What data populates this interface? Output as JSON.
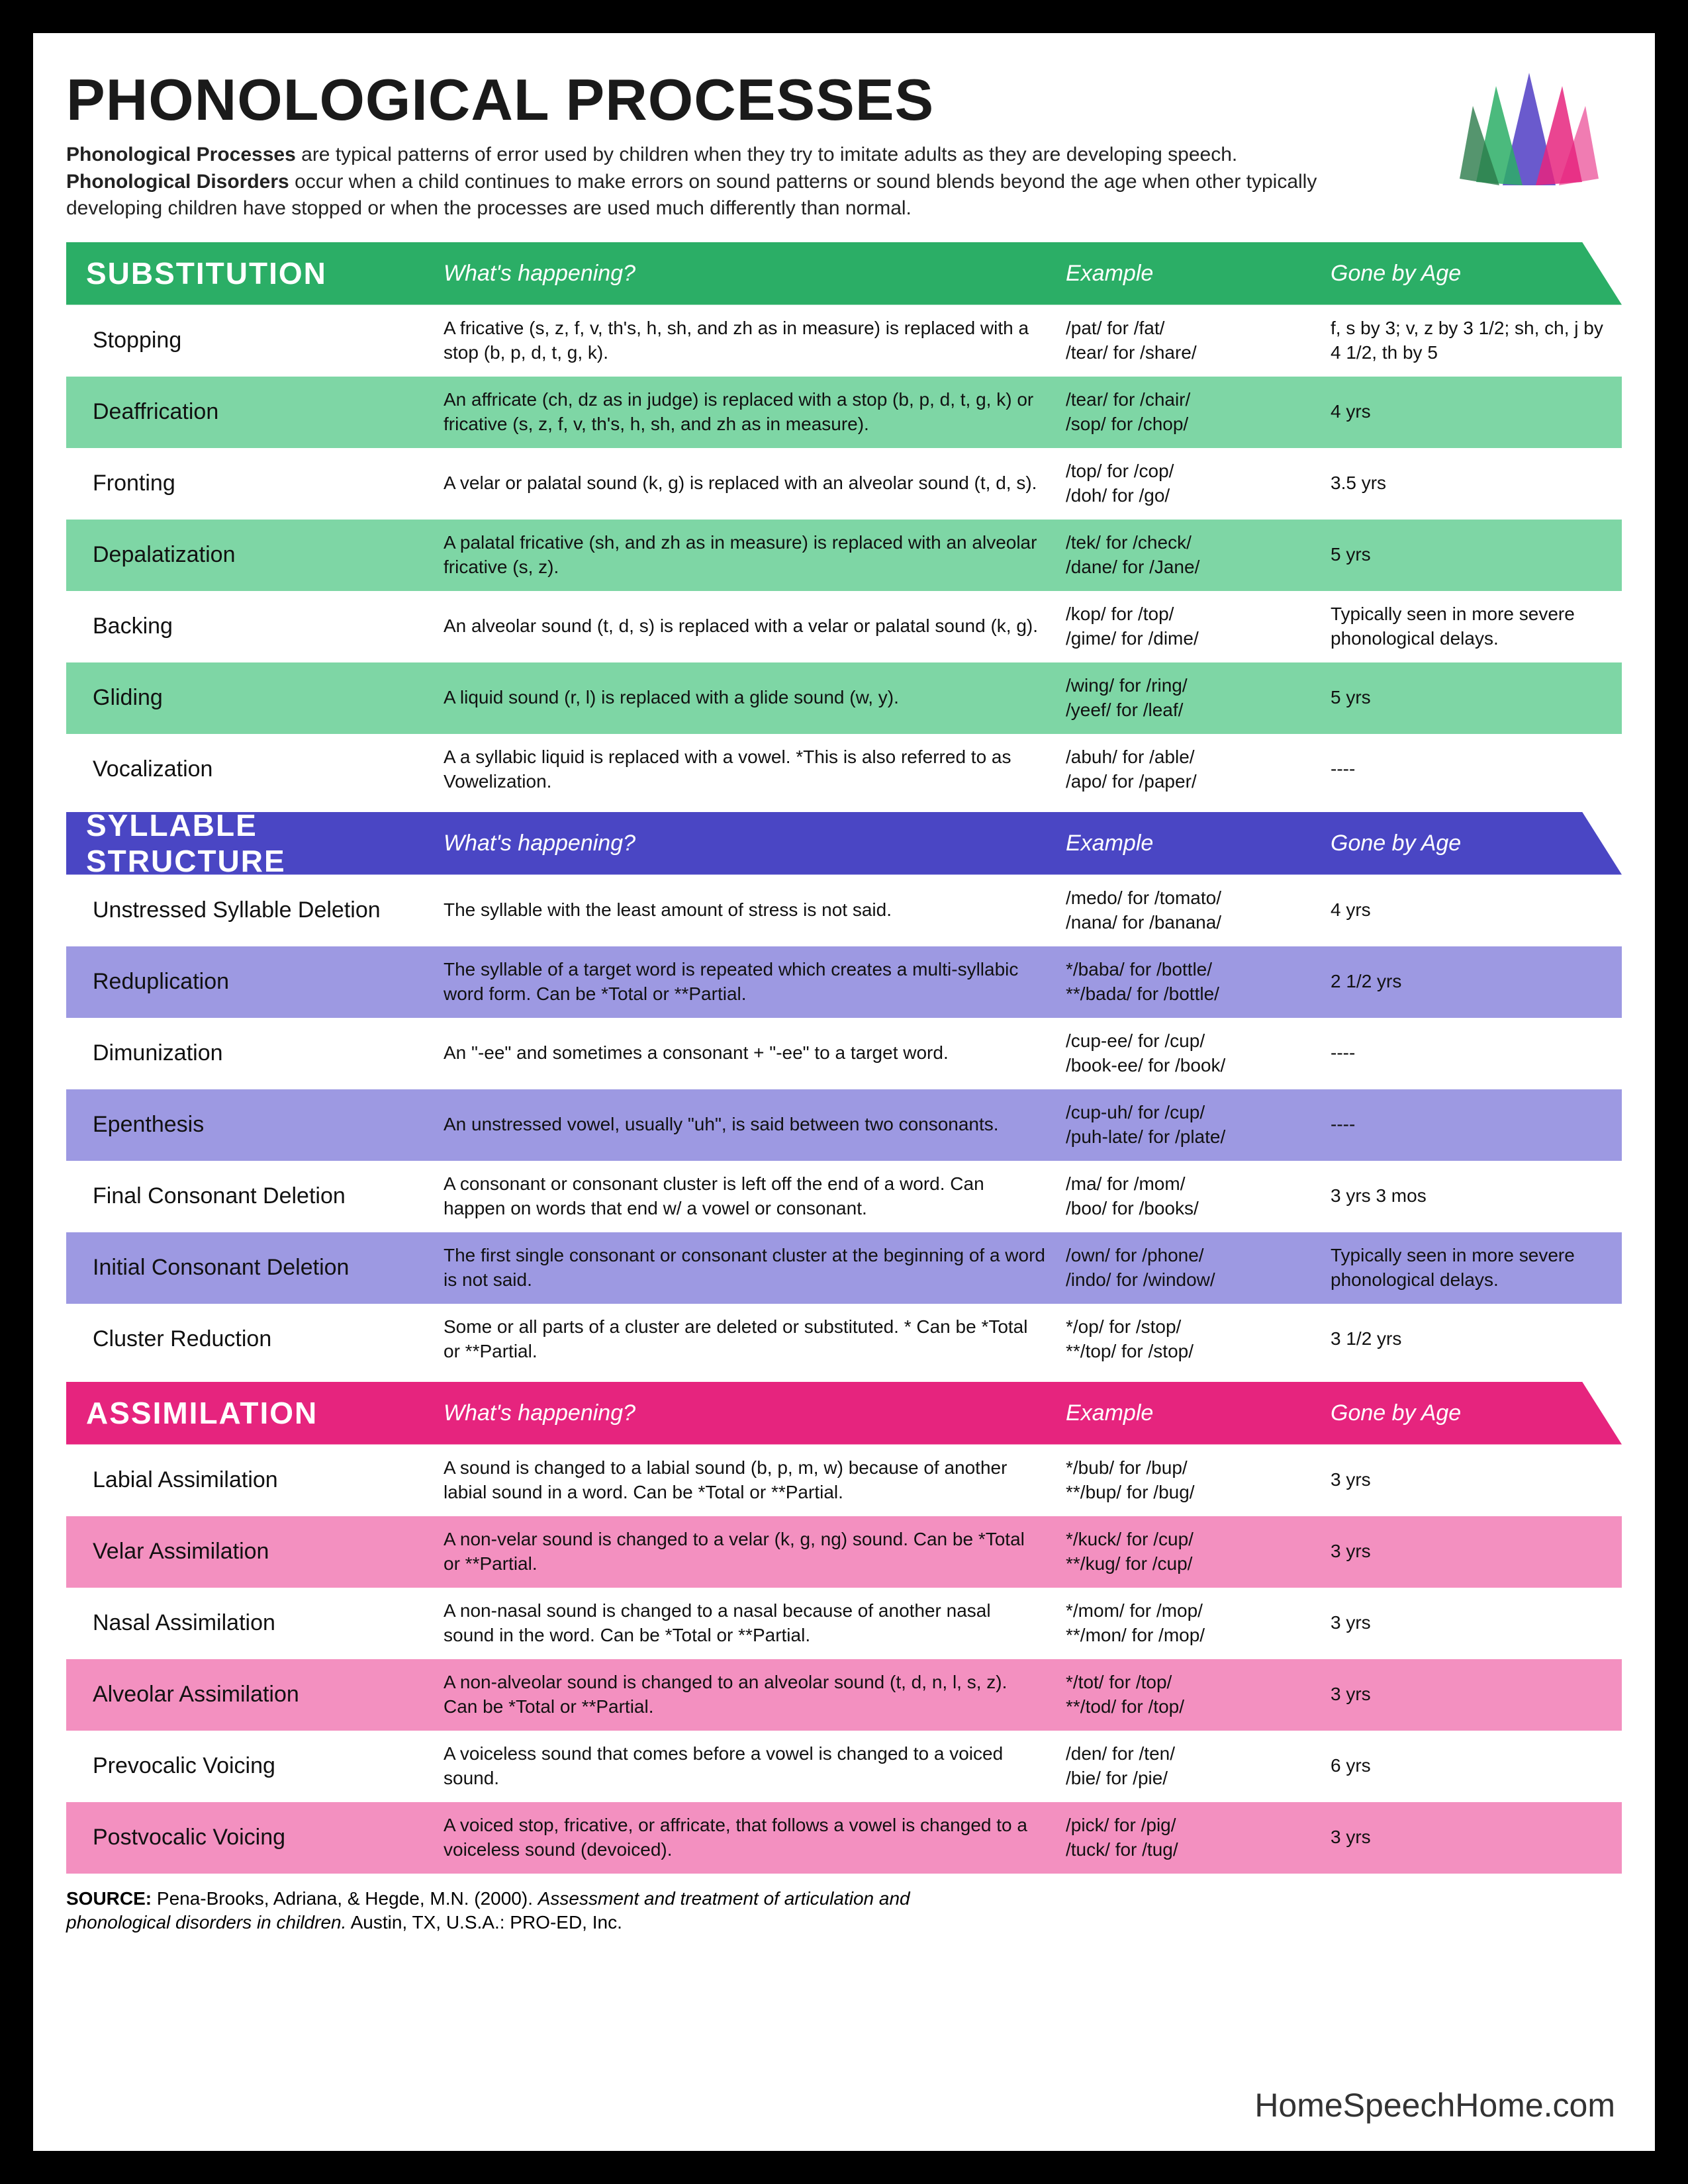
{
  "title": "PHONOLOGICAL PROCESSES",
  "intro_html": "<b>Phonological Processes</b> are typical patterns of error used by children when they try to imitate adults as they are developing speech. <b>Phonological Disorders</b> occur when a child continues to make errors on sound patterns or sound blends beyond the age when other typically developing children have stopped or when the processes are used much differently than normal.",
  "columns": {
    "c2": "What's happening?",
    "c3": "Example",
    "c4": "Gone by Age"
  },
  "colors": {
    "green_header": "#2bae66",
    "green_row": "#7ed6a5",
    "purple_header": "#4a46c4",
    "purple_row": "#9d99e2",
    "pink_header": "#e6247e",
    "pink_row": "#f390c0",
    "white": "#ffffff",
    "text": "#111111"
  },
  "sections": [
    {
      "title": "SUBSTITUTION",
      "header_color": "#2bae66",
      "alt_row_color": "#7ed6a5",
      "rows": [
        {
          "name": "Stopping",
          "desc": "A fricative (s, z, f, v, th's, h, sh, and zh as in measure) is replaced with a stop (b, p, d, t, g, k).",
          "example": "/pat/ for /fat/\n/tear/ for /share/",
          "age": "f, s by 3; v, z by 3 1/2; sh, ch, j by 4 1/2, th by 5"
        },
        {
          "name": "Deaffrication",
          "desc": "An affricate (ch, dz as in judge) is replaced with a stop (b, p, d, t, g, k) or fricative (s, z, f, v, th's, h, sh, and zh as in measure).",
          "example": "/tear/ for /chair/\n/sop/ for /chop/",
          "age": "4 yrs"
        },
        {
          "name": "Fronting",
          "desc": "A velar or palatal sound (k, g) is replaced with an alveolar sound (t, d, s).",
          "example": "/top/ for /cop/\n/doh/ for /go/",
          "age": "3.5 yrs"
        },
        {
          "name": "Depalatization",
          "desc": "A palatal fricative (sh, and zh as in measure) is replaced with an alveolar fricative (s, z).",
          "example": "/tek/ for /check/\n/dane/ for /Jane/",
          "age": "5 yrs"
        },
        {
          "name": "Backing",
          "desc": "An alveolar sound (t, d, s) is replaced with a velar or palatal sound (k, g).",
          "example": "/kop/ for /top/\n/gime/ for /dime/",
          "age": "Typically seen in more severe phonological delays."
        },
        {
          "name": "Gliding",
          "desc": "A liquid sound (r, l) is replaced with a glide sound (w, y).",
          "example": "/wing/ for /ring/\n/yeef/ for /leaf/",
          "age": "5 yrs"
        },
        {
          "name": "Vocalization",
          "desc": "A a syllabic liquid is replaced with a vowel. *This is also referred to as Vowelization.",
          "example": "/abuh/ for /able/\n/apo/ for /paper/",
          "age": "----"
        }
      ]
    },
    {
      "title": "SYLLABLE STRUCTURE",
      "header_color": "#4a46c4",
      "alt_row_color": "#9d99e2",
      "rows": [
        {
          "name": "Unstressed Syllable Deletion",
          "desc": "The syllable with the least amount of stress is not said.",
          "example": "/medo/ for /tomato/\n/nana/ for /banana/",
          "age": "4 yrs"
        },
        {
          "name": "Reduplication",
          "desc": "The syllable of a target word is repeated which creates a multi-syllabic word form. Can be *Total or **Partial.",
          "example": "*/baba/ for /bottle/\n**/bada/ for /bottle/",
          "age": "2 1/2 yrs"
        },
        {
          "name": "Dimunization",
          "desc": "An \"-ee\" and sometimes a consonant + \"-ee\" to a target word.",
          "example": "/cup-ee/ for /cup/\n/book-ee/ for /book/",
          "age": "----"
        },
        {
          "name": "Epenthesis",
          "desc": "An unstressed vowel, usually \"uh\", is said between two consonants.",
          "example": "/cup-uh/ for /cup/\n/puh-late/ for /plate/",
          "age": "----"
        },
        {
          "name": "Final Consonant Deletion",
          "desc": "A consonant or consonant cluster is left off the end of a word. Can happen on words that end w/ a vowel or consonant.",
          "example": "/ma/ for /mom/\n/boo/ for /books/",
          "age": "3 yrs 3 mos"
        },
        {
          "name": "Initial Consonant Deletion",
          "desc": "The first single consonant or consonant cluster at the beginning of a word is not said.",
          "example": "/own/ for /phone/\n/indo/ for /window/",
          "age": "Typically seen in more severe phonological delays."
        },
        {
          "name": "Cluster Reduction",
          "desc": "Some or all parts of a cluster are deleted or substituted. * Can be *Total or **Partial.",
          "example": "*/op/ for /stop/\n**/top/ for /stop/",
          "age": "3 1/2 yrs"
        }
      ]
    },
    {
      "title": "ASSIMILATION",
      "header_color": "#e6247e",
      "alt_row_color": "#f390c0",
      "rows": [
        {
          "name": "Labial Assimilation",
          "desc": "A sound is changed to a labial sound (b, p, m, w) because of another labial sound in a word. Can be *Total or **Partial.",
          "example": "*/bub/ for /bup/\n**/bup/ for /bug/",
          "age": "3 yrs"
        },
        {
          "name": "Velar Assimilation",
          "desc": "A non-velar sound is changed to a velar (k, g, ng) sound. Can be *Total or **Partial.",
          "example": "*/kuck/ for /cup/\n**/kug/ for /cup/",
          "age": "3 yrs"
        },
        {
          "name": "Nasal Assimilation",
          "desc": "A non-nasal sound is changed to a nasal because of another nasal sound in the word. Can be *Total or **Partial.",
          "example": "*/mom/ for /mop/\n**/mon/ for /mop/",
          "age": "3 yrs"
        },
        {
          "name": "Alveolar Assimilation",
          "desc": "A non-alveolar sound is changed to an alveolar sound (t, d, n, l, s, z). Can be *Total or **Partial.",
          "example": "*/tot/ for /top/\n**/tod/ for /top/",
          "age": "3 yrs"
        },
        {
          "name": "Prevocalic Voicing",
          "desc": "A voiceless sound that comes before a vowel is changed to a voiced sound.",
          "example": "/den/ for /ten/\n/bie/ for /pie/",
          "age": "6 yrs"
        },
        {
          "name": "Postvocalic Voicing",
          "desc": "A voiced stop, fricative, or affricate, that follows a vowel is changed to a  voiceless sound (devoiced).",
          "example": "/pick/ for /pig/\n/tuck/ for /tug/",
          "age": "3 yrs"
        }
      ]
    }
  ],
  "source_html": "<b>SOURCE:</b> Pena-Brooks, Adriana, & Hegde, M.N. (2000). <i>Assessment and treatment of articulation and phonological disorders in children.</i> Austin, TX, U.S.A.: PRO-ED, Inc.",
  "brand": "HomeSpeechHome.com",
  "logo_colors": {
    "green": "#2bae66",
    "purple": "#6a5acd",
    "pink": "#e6247e",
    "dark": "#2a7a4a"
  }
}
